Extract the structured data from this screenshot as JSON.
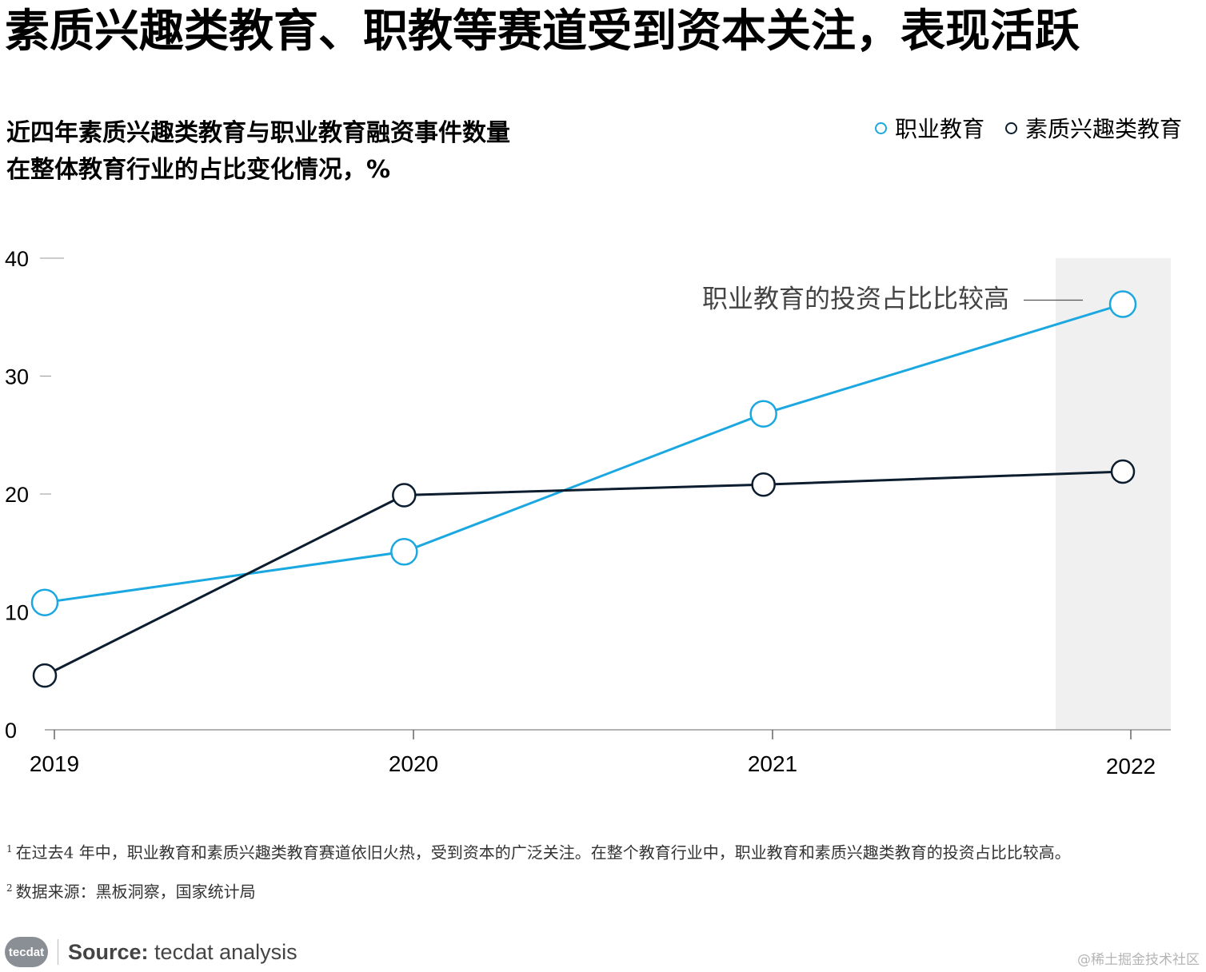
{
  "title": "素质兴趣类教育、职教等赛道受到资本关注，表现活跃",
  "subtitle_line1": "近四年素质兴趣类教育与职业教育融资事件数量",
  "subtitle_line2": "在整体教育行业的占比变化情况，%",
  "legend": [
    {
      "label": "职业教育",
      "color": "#1BA8E0"
    },
    {
      "label": "素质兴趣类教育",
      "color": "#0B1D2E"
    }
  ],
  "chart_data": {
    "type": "line",
    "title": "近四年素质兴趣类教育与职业教育融资事件数量在整体教育行业的占比变化情况，%",
    "categories": [
      "2019",
      "2020",
      "2021",
      "2022"
    ],
    "series": [
      {
        "name": "职业教育",
        "values": [
          10.8,
          15.1,
          26.8,
          36.1
        ],
        "color": "#1BA8E0"
      },
      {
        "name": "素质兴趣类教育",
        "values": [
          4.6,
          19.9,
          20.8,
          21.9
        ],
        "color": "#0B1D2E"
      }
    ],
    "yticks": [
      0,
      10,
      20,
      30,
      40
    ],
    "ylim": [
      0,
      40
    ],
    "xlabel": "",
    "ylabel": "",
    "grid": false,
    "highlight_category": "2022",
    "annotation": "职业教育的投资占比比较高"
  },
  "footnote1_mark": "1",
  "footnote1": "在过去4 年中，职业教育和素质兴趣类教育赛道依旧火热，受到资本的广泛关注。在整个教育行业中，职业教育和素质兴趣类教育的投资占比比较高。",
  "footnote2_mark": "2",
  "footnote2": "数据来源：黑板洞察，国家统计局",
  "source_logo": "tecdat",
  "source_label": "Source:",
  "source_value": "tecdat analysis",
  "watermark": "@稀土掘金技术社区"
}
